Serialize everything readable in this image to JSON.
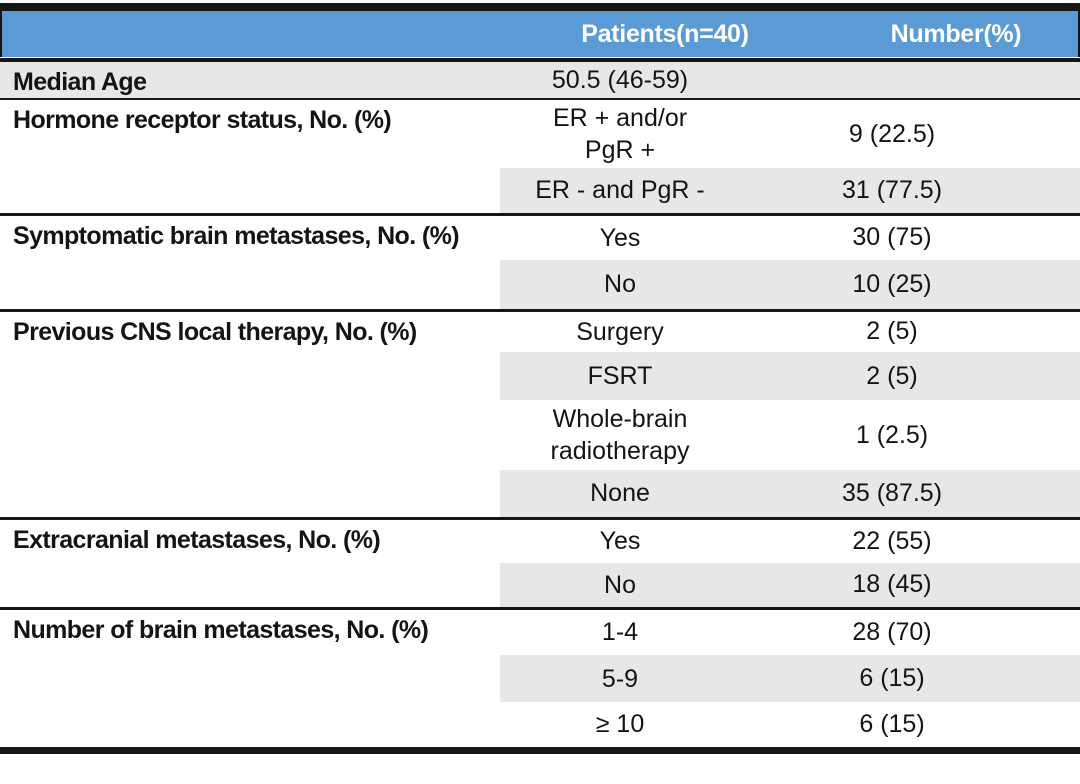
{
  "header": {
    "patients": "Patients(n=40)",
    "number": "Number(%)"
  },
  "colors": {
    "header_bg": "#5b9bd5",
    "header_text": "#ffffff",
    "band": "#e8e7e7",
    "rule": "#161616",
    "text": "#141414"
  },
  "groups": [
    {
      "label": "Median Age",
      "rows": [
        {
          "cat": "50.5 (46-59)",
          "num": ""
        }
      ]
    },
    {
      "label": "Hormone receptor status, No. (%)",
      "rows": [
        {
          "cat": "ER + and/or\nPgR +",
          "num": "9 (22.5)"
        },
        {
          "cat": "ER - and PgR -",
          "num": "31 (77.5)"
        }
      ]
    },
    {
      "label": "Symptomatic brain metastases, No. (%)",
      "rows": [
        {
          "cat": "Yes",
          "num": "30 (75)"
        },
        {
          "cat": "No",
          "num": "10 (25)"
        }
      ]
    },
    {
      "label": "Previous CNS local therapy, No. (%)",
      "rows": [
        {
          "cat": "Surgery",
          "num": "2 (5)"
        },
        {
          "cat": "FSRT",
          "num": "2 (5)"
        },
        {
          "cat": "Whole-brain\nradiotherapy",
          "num": "1 (2.5)"
        },
        {
          "cat": "None",
          "num": "35 (87.5)"
        }
      ]
    },
    {
      "label": "Extracranial metastases, No. (%)",
      "rows": [
        {
          "cat": "Yes",
          "num": "22 (55)"
        },
        {
          "cat": "No",
          "num": "18 (45)"
        }
      ]
    },
    {
      "label": "Number of brain metastases, No. (%)",
      "rows": [
        {
          "cat": "1-4",
          "num": "28 (70)"
        },
        {
          "cat": "5-9",
          "num": "6 (15)"
        },
        {
          "cat": "≥ 10",
          "num": "6 (15)"
        }
      ]
    }
  ]
}
